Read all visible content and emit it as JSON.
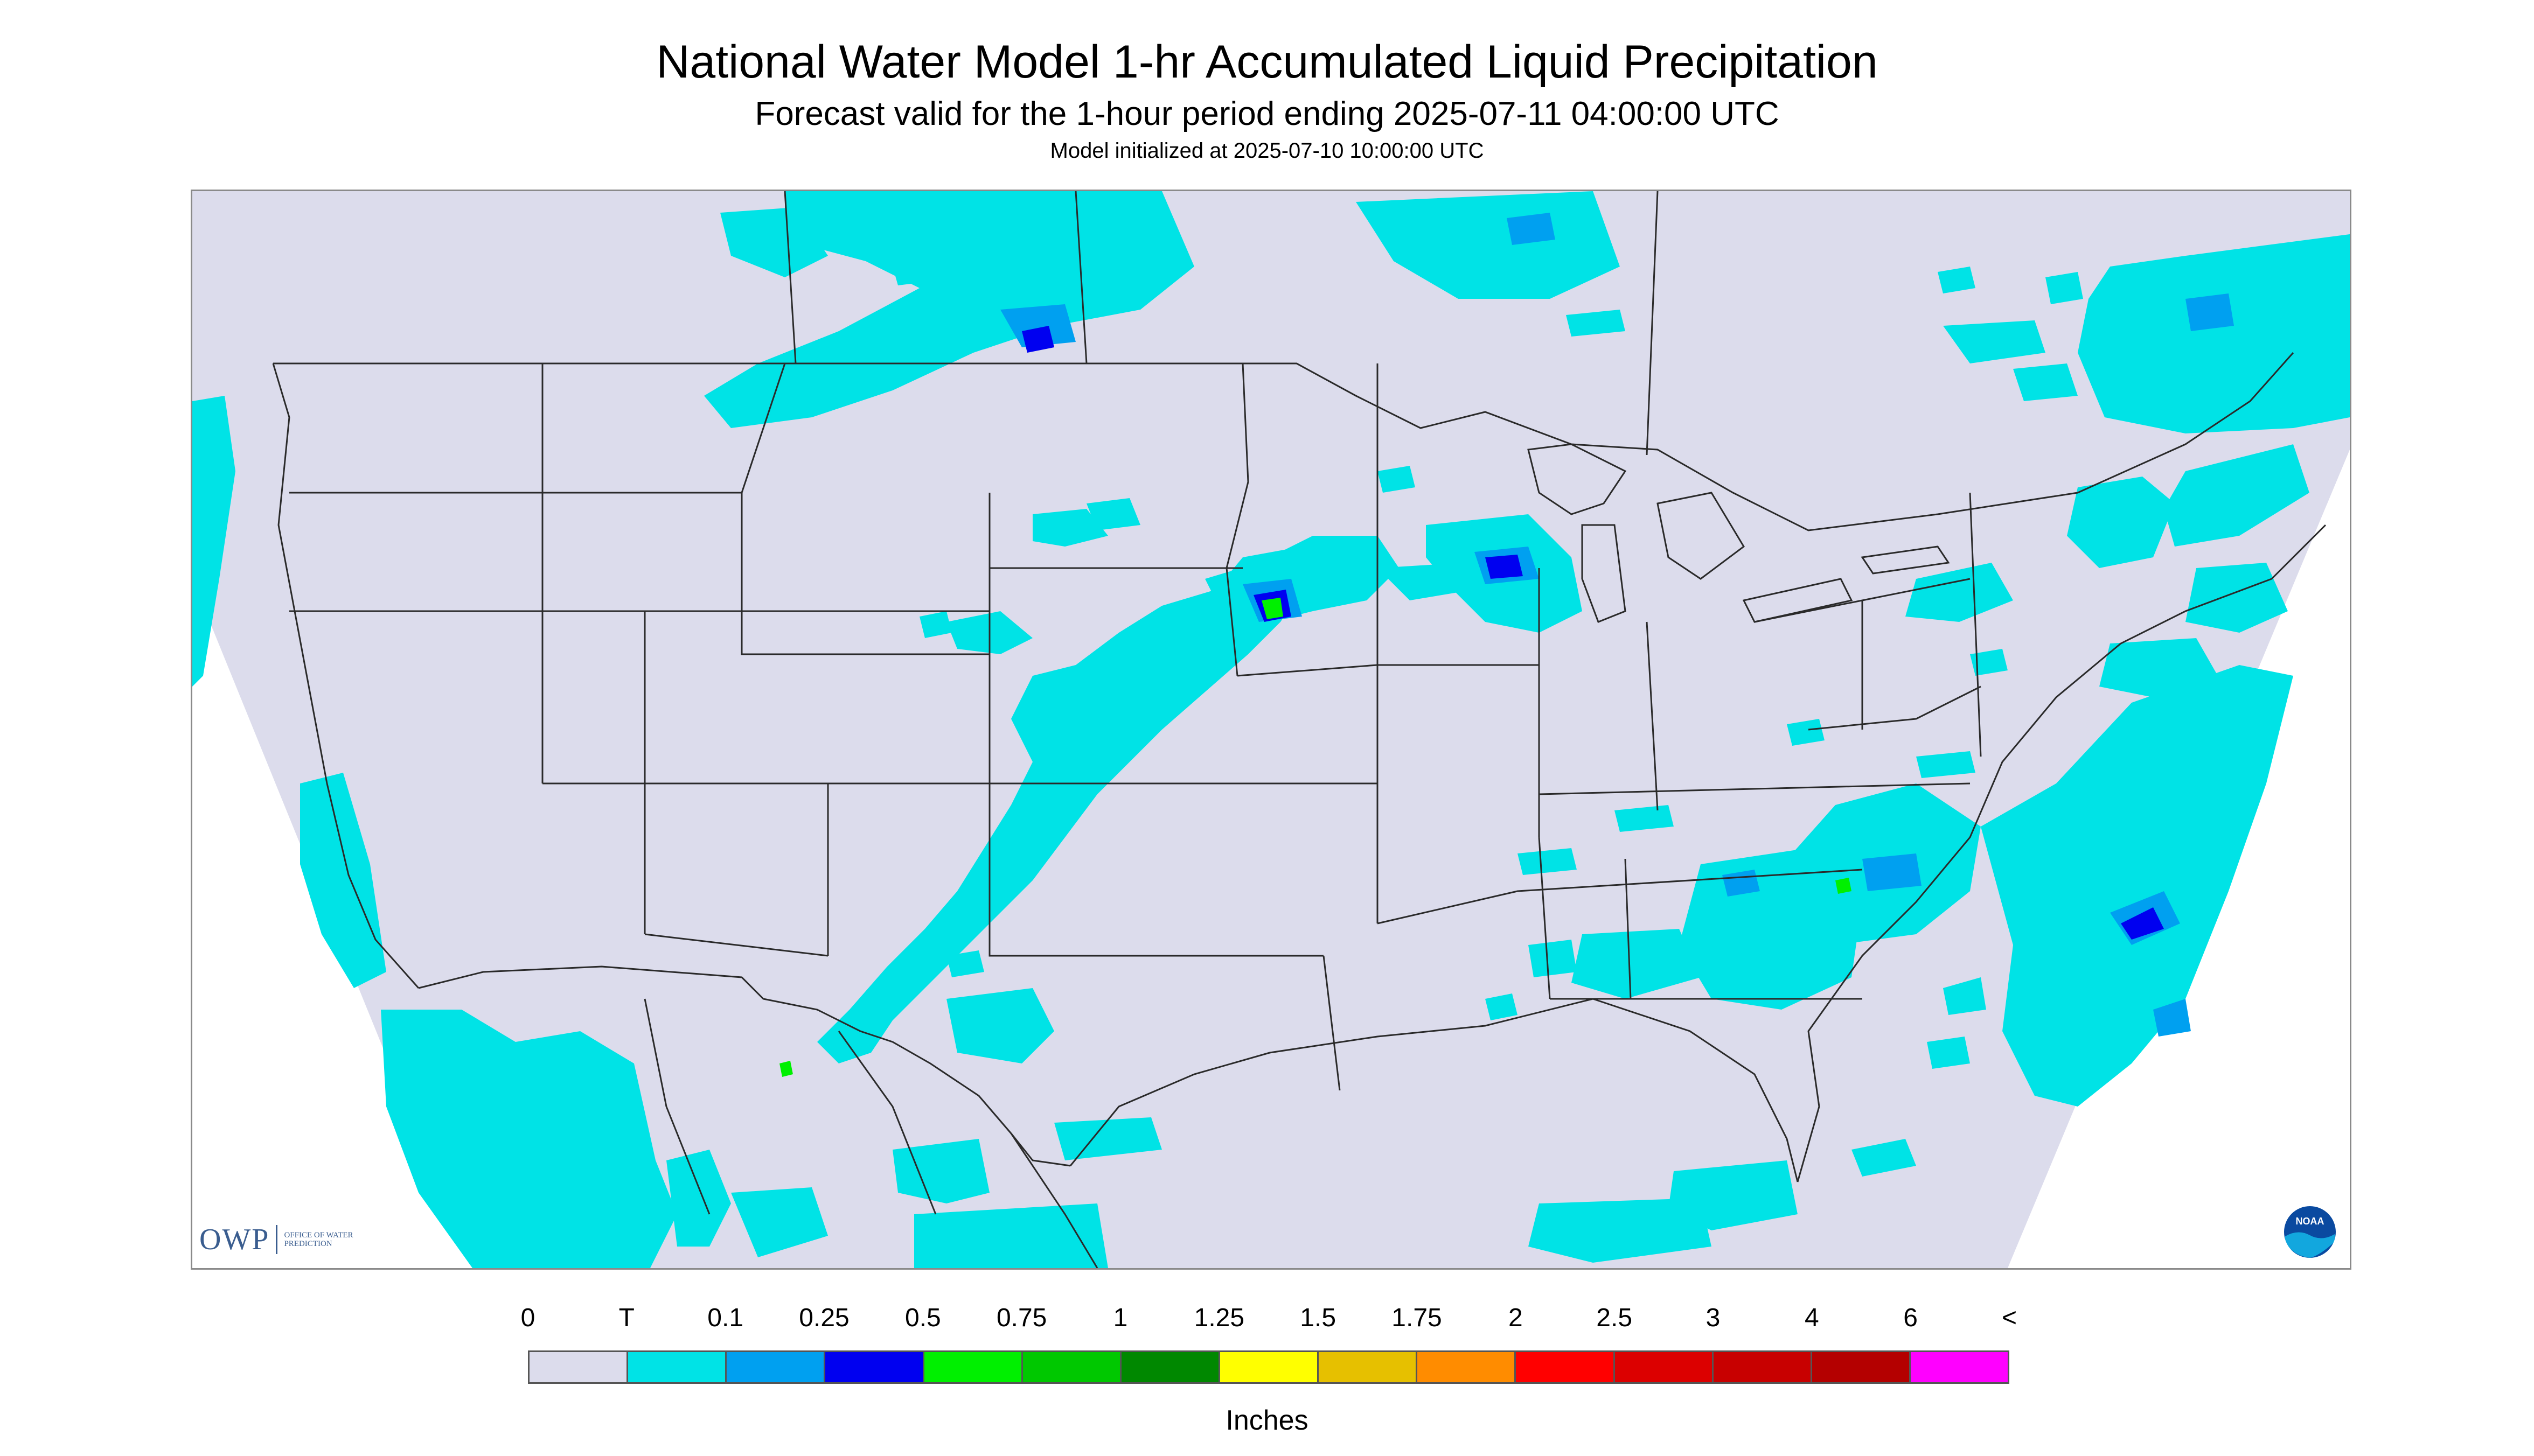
{
  "header": {
    "title": "National Water Model 1-hr Accumulated Liquid Precipitation",
    "subtitle": "Forecast valid for the 1-hour period ending 2025-07-11 04:00:00 UTC",
    "init": "Model initialized at 2025-07-10 10:00:00 UTC"
  },
  "map": {
    "background_color": "#dcdcec",
    "outside_color": "#ffffff",
    "boundary_color": "#2a2a2a"
  },
  "logos": {
    "owp_big": "OWP",
    "owp_small": "OFFICE OF WATER PREDICTION",
    "owp_icon": "owp-logo-icon",
    "noaa_icon": "noaa-logo-icon",
    "noaa_text": "NOAA"
  },
  "legend": {
    "units": "Inches",
    "ticks": [
      "0",
      "T",
      "0.1",
      "0.25",
      "0.5",
      "0.75",
      "1",
      "1.25",
      "1.5",
      "1.75",
      "2",
      "2.5",
      "3",
      "4",
      "6",
      "<"
    ],
    "colors": [
      "#dcdcec",
      "#00e3e6",
      "#00a0f0",
      "#0000f0",
      "#00f000",
      "#00c800",
      "#008800",
      "#ffff00",
      "#e6c000",
      "#ff8c00",
      "#ff0000",
      "#dc0000",
      "#c80000",
      "#b40000",
      "#ff00ff",
      "#9a50c8"
    ]
  }
}
